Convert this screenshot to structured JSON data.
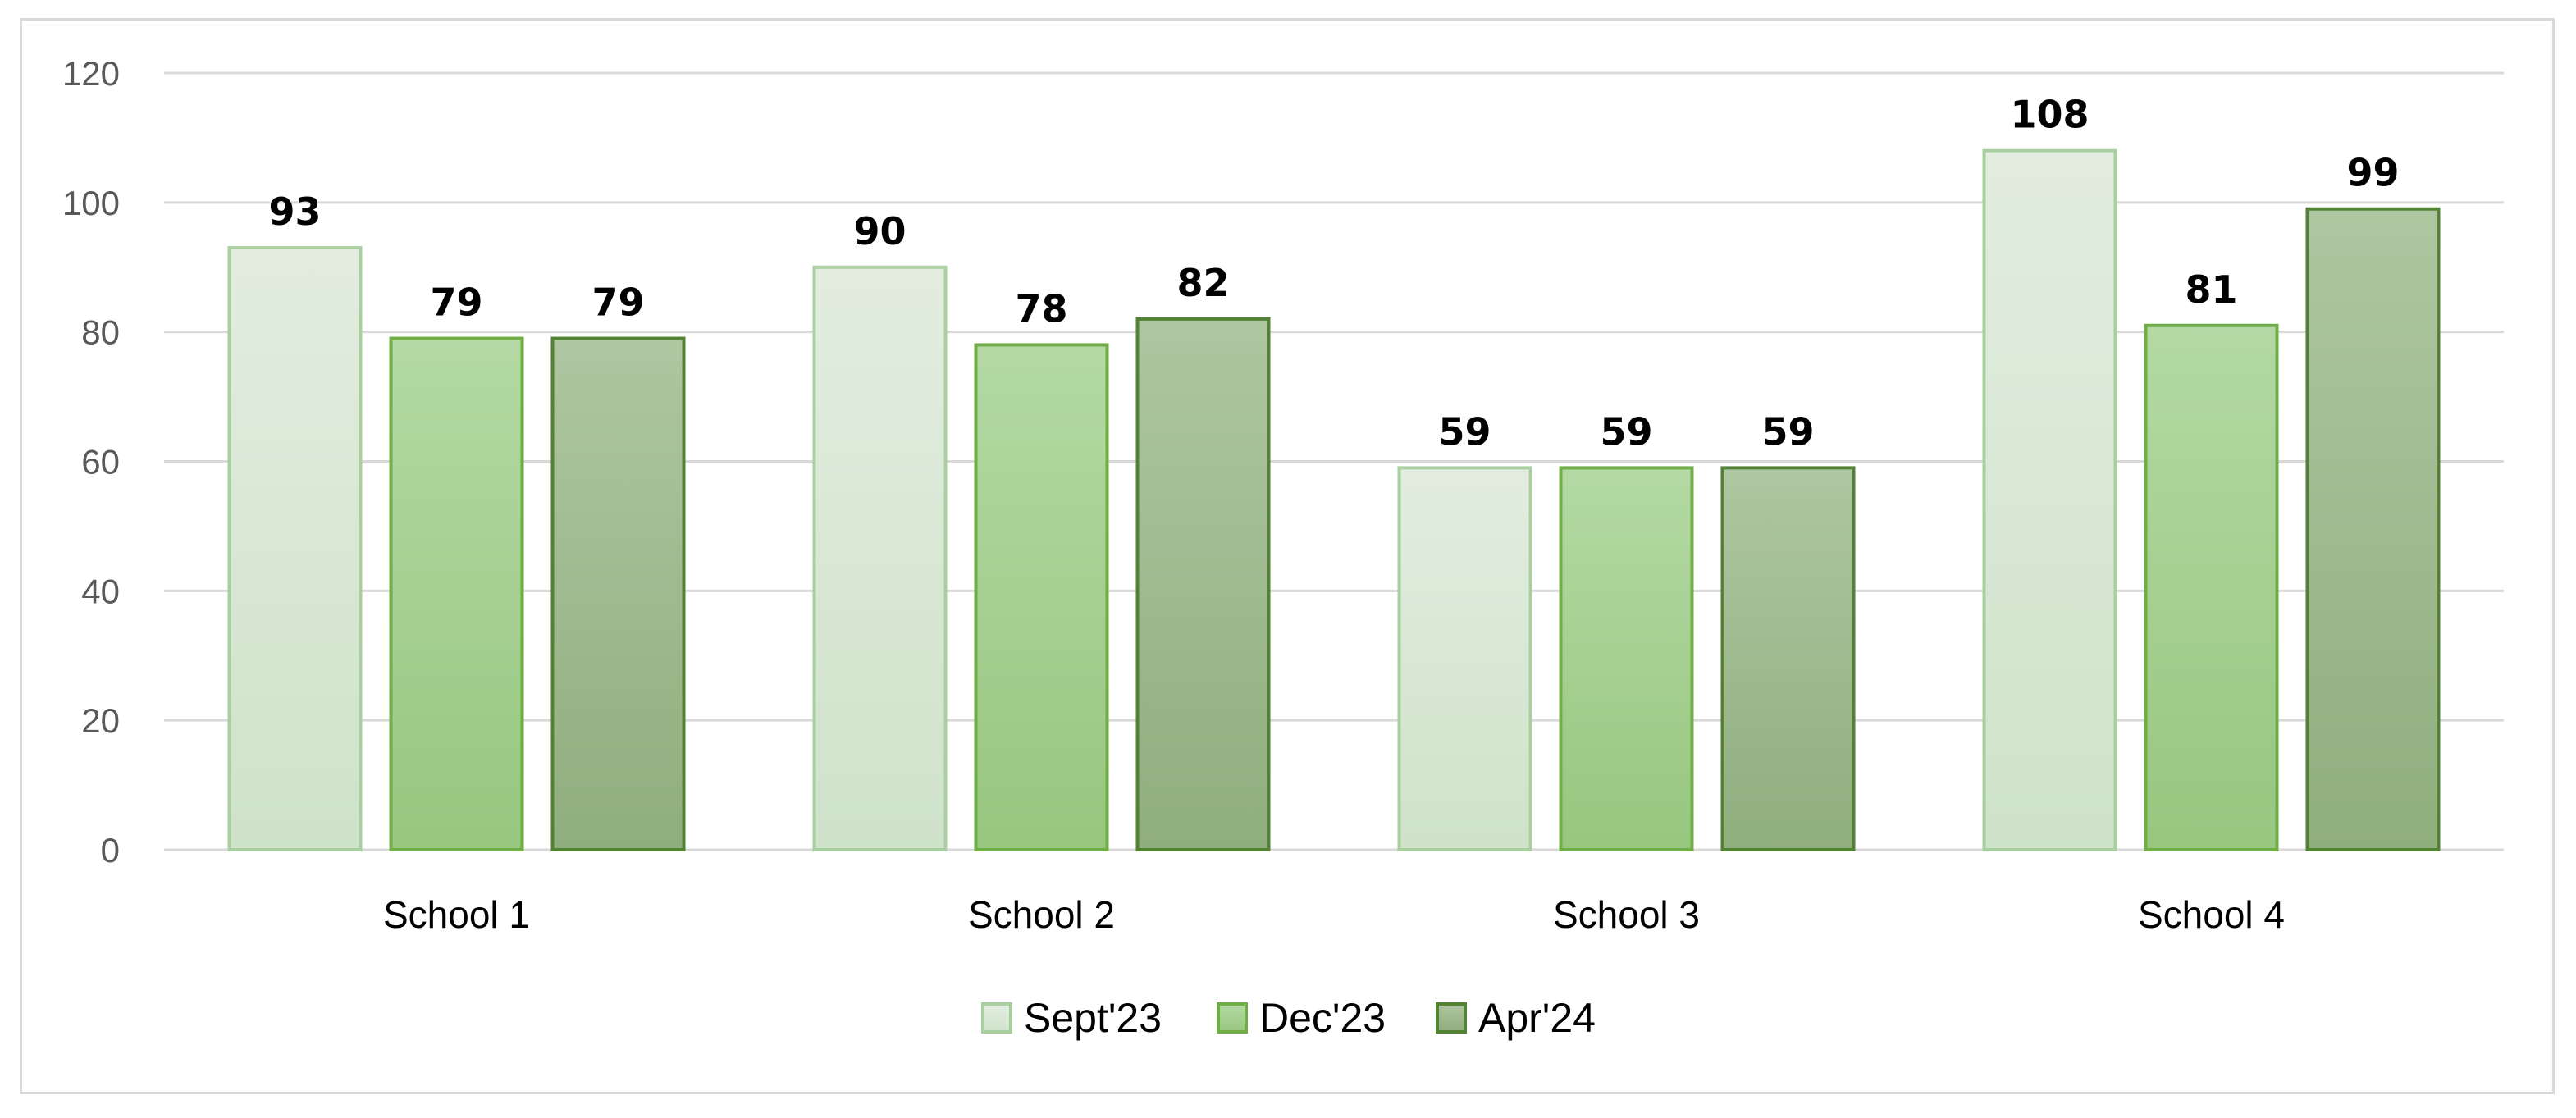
{
  "chart_data": {
    "type": "bar",
    "title": "",
    "xlabel": "",
    "ylabel": "",
    "categories": [
      "School 1",
      "School 2",
      "School 3",
      "School 4"
    ],
    "series": [
      {
        "name": "Sept'23",
        "values": [
          93,
          90,
          59,
          108
        ],
        "labels": [
          "93",
          "90",
          "59",
          "108"
        ],
        "fill": "#d8e7d4",
        "stroke": "#a9cfa1"
      },
      {
        "name": "Dec'23",
        "values": [
          79,
          78,
          59,
          81
        ],
        "labels": [
          "79",
          "78",
          "59",
          "81"
        ],
        "fill": "#a4d08f",
        "stroke": "#70ad47"
      },
      {
        "name": "Apr'24",
        "values": [
          79,
          82,
          59,
          99
        ],
        "labels": [
          "79",
          "82",
          "59",
          "99"
        ],
        "fill": "#a0bb91",
        "stroke": "#548235"
      }
    ],
    "ylim": [
      0,
      120
    ],
    "yticks": [
      0,
      20,
      40,
      60,
      80,
      100,
      120
    ],
    "ytick_labels": [
      "0",
      "20",
      "40",
      "60",
      "80",
      "100",
      "120"
    ],
    "grid": true,
    "legend_position": "bottom"
  }
}
